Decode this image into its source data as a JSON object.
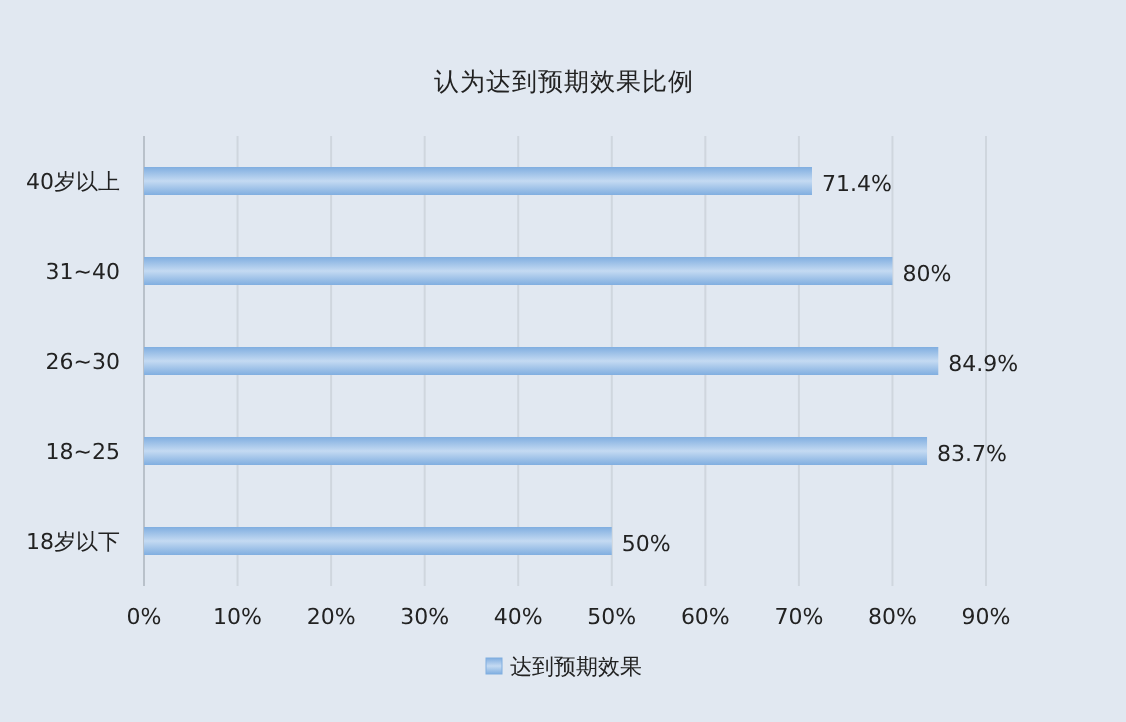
{
  "chart_data": {
    "type": "bar",
    "orientation": "horizontal",
    "title": "认为达到预期效果比例",
    "categories": [
      "40岁以上",
      "31~40",
      "26~30",
      "18~25",
      "18岁以下"
    ],
    "series": [
      {
        "name": "达到预期效果",
        "color": "#80aee0",
        "values": [
          71.4,
          80,
          84.9,
          83.7,
          50
        ],
        "value_labels": [
          "71.4%",
          "80%",
          "84.9%",
          "83.7%",
          "50%"
        ]
      }
    ],
    "xlim": [
      0,
      90
    ],
    "xticks": [
      {
        "value": 0,
        "label": "0%"
      },
      {
        "value": 10,
        "label": "10%"
      },
      {
        "value": 20,
        "label": "20%"
      },
      {
        "value": 30,
        "label": "30%"
      },
      {
        "value": 40,
        "label": "40%"
      },
      {
        "value": 50,
        "label": "50%"
      },
      {
        "value": 60,
        "label": "60%"
      },
      {
        "value": 70,
        "label": "70%"
      },
      {
        "value": 80,
        "label": "80%"
      },
      {
        "value": 90,
        "label": "90%"
      }
    ],
    "grid": "x",
    "legend": "bottom"
  }
}
